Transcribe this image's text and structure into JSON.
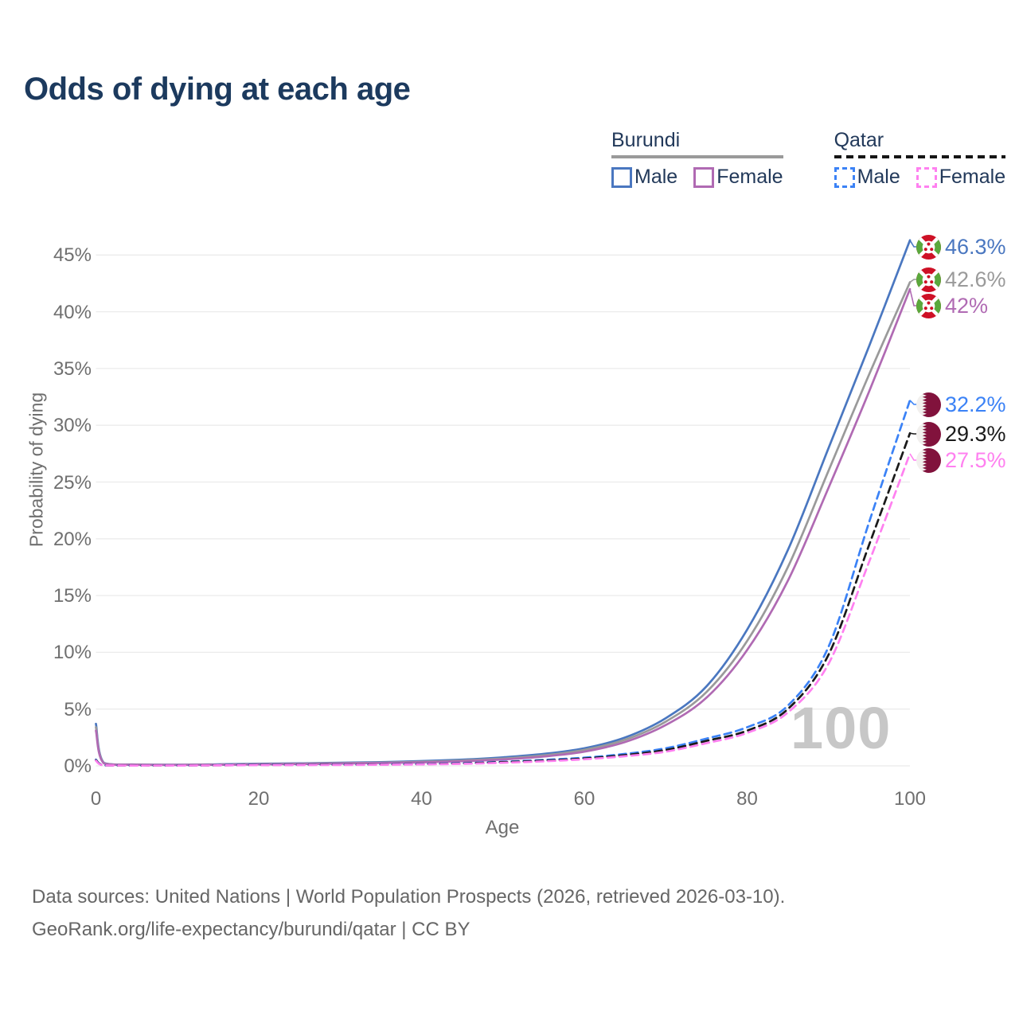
{
  "title": "Odds of dying at each age",
  "watermark": "100",
  "legend": {
    "groups": [
      {
        "name": "Burundi",
        "line_style": "solid",
        "underline_color": "#9a9a9a",
        "items": [
          {
            "label": "Male",
            "color": "#4a77c0"
          },
          {
            "label": "Female",
            "color": "#b06ab3"
          }
        ]
      },
      {
        "name": "Qatar",
        "line_style": "dashed",
        "underline_color": "#151515",
        "items": [
          {
            "label": "Male",
            "color": "#3b82f6"
          },
          {
            "label": "Female",
            "color": "#ff80f0"
          }
        ]
      }
    ]
  },
  "axes": {
    "y": {
      "title": "Probability of dying",
      "ticks": [
        "0%",
        "5%",
        "10%",
        "15%",
        "20%",
        "25%",
        "30%",
        "35%",
        "40%",
        "45%"
      ],
      "tick_values": [
        0,
        5,
        10,
        15,
        20,
        25,
        30,
        35,
        40,
        45
      ]
    },
    "x": {
      "title": "Age",
      "ticks": [
        "0",
        "20",
        "40",
        "60",
        "80",
        "100"
      ],
      "tick_values": [
        0,
        20,
        40,
        60,
        80,
        100
      ]
    }
  },
  "footer": {
    "line1": "Data sources: United Nations | World Population Prospects (2026, retrieved 2026-03-10).",
    "line2": "GeoRank.org/life-expectancy/burundi/qatar | CC BY"
  },
  "chart_data": {
    "type": "line",
    "title": "Odds of dying at each age",
    "xlabel": "Age",
    "ylabel": "Probability of dying",
    "xlim": [
      0,
      100
    ],
    "ylim_percent": [
      0,
      47
    ],
    "grid": "horizontal",
    "legend_position": "top-right",
    "x": [
      0,
      1,
      5,
      10,
      15,
      20,
      25,
      30,
      35,
      40,
      45,
      50,
      55,
      60,
      65,
      70,
      75,
      80,
      85,
      90,
      95,
      100
    ],
    "series": [
      {
        "name": "Burundi Male",
        "country": "Burundi",
        "sex": "Male",
        "color": "#4a77c0",
        "dash": false,
        "end_label": "46.3%",
        "flag": "burundi",
        "values": [
          3.7,
          0.25,
          0.12,
          0.1,
          0.13,
          0.18,
          0.22,
          0.27,
          0.33,
          0.42,
          0.55,
          0.75,
          1.05,
          1.55,
          2.5,
          4.2,
          7.0,
          12.0,
          19.0,
          28.0,
          37.0,
          46.3
        ]
      },
      {
        "name": "Burundi Both sexes",
        "country": "Burundi",
        "sex": "Both",
        "color": "#9a9a9a",
        "dash": false,
        "end_label": "42.6%",
        "flag": "burundi",
        "values": [
          3.4,
          0.23,
          0.11,
          0.09,
          0.11,
          0.15,
          0.19,
          0.23,
          0.28,
          0.36,
          0.47,
          0.64,
          0.92,
          1.4,
          2.3,
          3.9,
          6.5,
          11.0,
          17.5,
          26.0,
          34.5,
          42.6
        ]
      },
      {
        "name": "Burundi Female",
        "country": "Burundi",
        "sex": "Female",
        "color": "#b06ab3",
        "dash": false,
        "end_label": "42%",
        "flag": "burundi",
        "values": [
          3.1,
          0.21,
          0.1,
          0.08,
          0.1,
          0.13,
          0.16,
          0.2,
          0.25,
          0.31,
          0.41,
          0.56,
          0.82,
          1.25,
          2.1,
          3.6,
          6.0,
          10.2,
          16.3,
          24.5,
          33.0,
          42.0
        ]
      },
      {
        "name": "Qatar Male",
        "country": "Qatar",
        "sex": "Male",
        "color": "#3b82f6",
        "dash": true,
        "end_label": "32.2%",
        "flag": "qatar",
        "values": [
          0.55,
          0.05,
          0.03,
          0.03,
          0.06,
          0.09,
          0.1,
          0.11,
          0.13,
          0.17,
          0.24,
          0.36,
          0.52,
          0.72,
          1.05,
          1.55,
          2.4,
          3.4,
          5.3,
          10.5,
          21.5,
          32.2
        ]
      },
      {
        "name": "Qatar Both sexes",
        "country": "Qatar",
        "sex": "Both",
        "color": "#1a1a1a",
        "dash": true,
        "end_label": "29.3%",
        "flag": "qatar",
        "values": [
          0.5,
          0.045,
          0.025,
          0.025,
          0.05,
          0.08,
          0.09,
          0.1,
          0.12,
          0.15,
          0.21,
          0.32,
          0.46,
          0.65,
          0.95,
          1.4,
          2.2,
          3.1,
          5.0,
          9.8,
          19.5,
          29.3
        ]
      },
      {
        "name": "Qatar Female",
        "country": "Qatar",
        "sex": "Female",
        "color": "#ff80f0",
        "dash": true,
        "end_label": "27.5%",
        "flag": "qatar",
        "values": [
          0.45,
          0.04,
          0.02,
          0.02,
          0.04,
          0.06,
          0.07,
          0.08,
          0.1,
          0.13,
          0.18,
          0.27,
          0.4,
          0.58,
          0.85,
          1.25,
          2.0,
          2.9,
          4.7,
          9.0,
          18.0,
          27.5
        ]
      }
    ]
  }
}
